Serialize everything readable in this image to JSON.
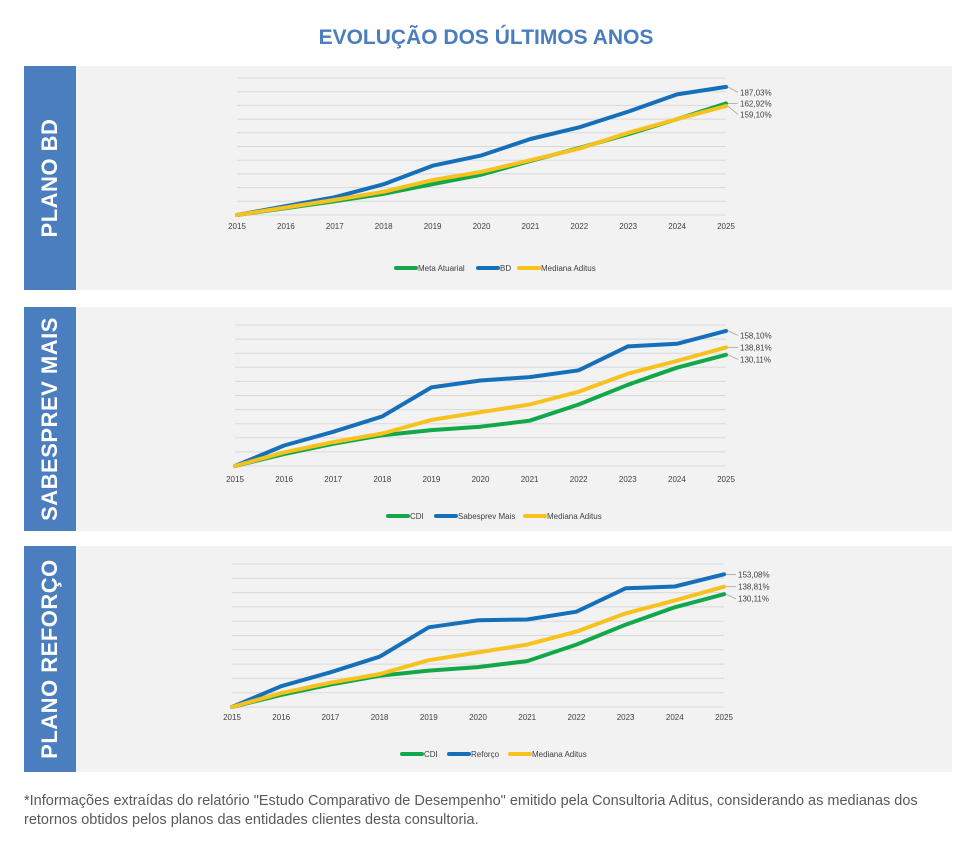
{
  "title": "EVOLUÇÃO DOS ÚLTIMOS ANOS",
  "footnote": "*Informações extraídas do relatório \"Estudo Comparativo de Desempenho\" emitido pela Consultoria Aditus, considerando as medianas dos retornos obtidos pelos planos das entidades clientes desta consultoria.",
  "colors": {
    "green": "#12a84a",
    "blue": "#1570b9",
    "yellow": "#f7c21d",
    "side": "#4a7ebf"
  },
  "panels": [
    {
      "label": "PLANO BD"
    },
    {
      "label": "SABESPREV MAIS"
    },
    {
      "label": "PLANO REFORÇO"
    }
  ],
  "chart_data": [
    {
      "type": "line",
      "title": "",
      "x": [
        "2015",
        "2016",
        "2017",
        "2018",
        "2019",
        "2020",
        "2021",
        "2022",
        "2023",
        "2024",
        "2025"
      ],
      "ylim": [
        0,
        200
      ],
      "series": [
        {
          "name": "Meta Atuarial",
          "color": "#12a84a",
          "values": [
            0,
            10,
            20,
            31,
            45,
            59,
            79,
            98,
            118,
            140,
            162.92
          ],
          "end_label": "162,92%"
        },
        {
          "name": "BD",
          "color": "#1570b9",
          "values": [
            0,
            13,
            26,
            45,
            72,
            87,
            111,
            128,
            151,
            176,
            187.03
          ],
          "end_label": "187,03%"
        },
        {
          "name": "Mediana Aditus",
          "color": "#f7c21d",
          "values": [
            0,
            11,
            22,
            34,
            51,
            63,
            80,
            97,
            120,
            140,
            159.1
          ],
          "end_label": "159,10%"
        }
      ]
    },
    {
      "type": "line",
      "title": "",
      "x": [
        "2015",
        "2016",
        "2017",
        "2018",
        "2019",
        "2020",
        "2021",
        "2022",
        "2023",
        "2024",
        "2025"
      ],
      "ylim": [
        0,
        165
      ],
      "series": [
        {
          "name": "CDI",
          "color": "#12a84a",
          "values": [
            0,
            14,
            26,
            36,
            42,
            46,
            53,
            72,
            95,
            115,
            130.11
          ],
          "end_label": "130,11%"
        },
        {
          "name": "Sabesprev Mais",
          "color": "#1570b9",
          "values": [
            0,
            24,
            40,
            58,
            92,
            100,
            104,
            112,
            140,
            143,
            158.1
          ],
          "end_label": "158,10%"
        },
        {
          "name": "Mediana Aditus",
          "color": "#f7c21d",
          "values": [
            0,
            16,
            28,
            38,
            54,
            63,
            72,
            87,
            108,
            123,
            138.81
          ],
          "end_label": "138,81%"
        }
      ]
    },
    {
      "type": "line",
      "title": "",
      "x": [
        "2015",
        "2016",
        "2017",
        "2018",
        "2019",
        "2020",
        "2021",
        "2022",
        "2023",
        "2024",
        "2025"
      ],
      "ylim": [
        0,
        165
      ],
      "series": [
        {
          "name": "CDI",
          "color": "#12a84a",
          "values": [
            0,
            14,
            26,
            36,
            42,
            46,
            53,
            72,
            95,
            115,
            130.11
          ],
          "end_label": "130,11%"
        },
        {
          "name": "Reforço",
          "color": "#1570b9",
          "values": [
            0,
            24,
            40,
            58,
            92,
            100,
            101,
            110,
            137,
            139,
            153.08
          ],
          "end_label": "153,08%"
        },
        {
          "name": "Mediana Aditus",
          "color": "#f7c21d",
          "values": [
            0,
            16,
            28,
            38,
            54,
            63,
            72,
            87,
            108,
            123,
            138.81
          ],
          "end_label": "138,81%"
        }
      ]
    }
  ]
}
